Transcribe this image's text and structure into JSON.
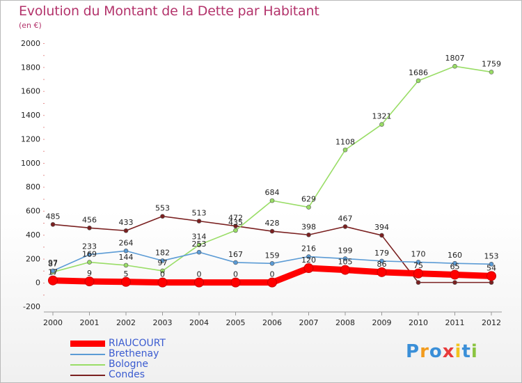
{
  "header": {
    "title": "Evolution du Montant de la Dette par Habitant",
    "subtitle": "(en €)"
  },
  "chart_data": {
    "type": "line",
    "title": "Evolution du Montant de la Dette par Habitant",
    "subtitle": "(en €)",
    "categories": [
      "2000",
      "2001",
      "2002",
      "2003",
      "2004",
      "2005",
      "2006",
      "2007",
      "2008",
      "2009",
      "2010",
      "2011",
      "2012"
    ],
    "ylim": [
      -200,
      2000
    ],
    "yticks": [
      -200,
      0,
      200,
      400,
      600,
      800,
      1000,
      1200,
      1400,
      1600,
      1800,
      2000
    ],
    "grid": false,
    "legend_position": "bottom-left",
    "series": [
      {
        "name": "RIAUCOURT",
        "color": "#ff0000",
        "thick": true,
        "values": [
          17,
          9,
          5,
          0,
          0,
          0,
          0,
          120,
          105,
          86,
          75,
          65,
          54
        ],
        "labels": [
          "17",
          "9",
          "5",
          "0",
          "0",
          "0",
          "0",
          "120",
          "105",
          "86",
          "75",
          "65",
          "54"
        ]
      },
      {
        "name": "Brethenay",
        "color": "#5b9bd5",
        "thick": false,
        "values": [
          97,
          233,
          264,
          182,
          253,
          167,
          159,
          216,
          199,
          179,
          170,
          160,
          153
        ],
        "labels": [
          "97",
          "233",
          "264",
          "182",
          "253",
          "167",
          "159",
          "216",
          "199",
          "179",
          "170",
          "160",
          "153"
        ]
      },
      {
        "name": "Bologne",
        "color": "#99dd66",
        "thick": false,
        "values": [
          87,
          169,
          144,
          97,
          314,
          435,
          684,
          629,
          1108,
          1321,
          1686,
          1807,
          1759
        ],
        "labels": [
          "87",
          "169",
          "144",
          "97",
          "314",
          "435",
          "684",
          "629",
          "1108",
          "1321",
          "1686",
          "1807",
          "1759"
        ]
      },
      {
        "name": "Condes",
        "color": "#7a2020",
        "thick": false,
        "values": [
          485,
          456,
          433,
          553,
          513,
          472,
          428,
          398,
          467,
          394,
          0,
          0,
          0
        ],
        "labels": [
          "485",
          "456",
          "433",
          "553",
          "513",
          "472",
          "428",
          "398",
          "467",
          "394",
          "",
          "",
          ""
        ]
      }
    ]
  },
  "legend": {
    "items": [
      "RIAUCOURT",
      "Brethenay",
      "Bologne",
      "Condes"
    ],
    "colors": [
      "#ff0000",
      "#5b9bd5",
      "#99dd66",
      "#7a2020"
    ]
  },
  "logo": {
    "text": "Proxiti",
    "letter_colors": [
      "#3a8fd8",
      "#f29b1d",
      "#3a8fd8",
      "#e83b3b",
      "#f2c41d",
      "#3a8fd8",
      "#8ac440"
    ]
  }
}
